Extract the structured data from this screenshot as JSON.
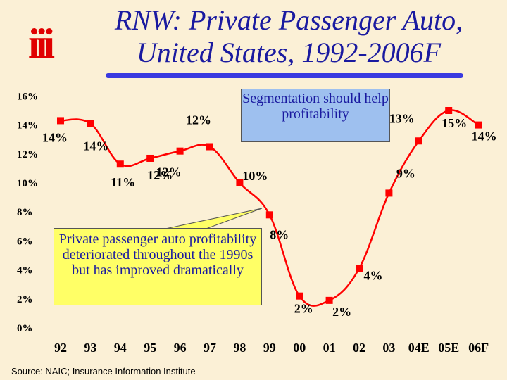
{
  "header": {
    "logo_text": "iii",
    "title_line1": "RNW: Private Passenger Auto,",
    "title_line2": "United States, 1992-2006F"
  },
  "callouts": {
    "segmentation": "Segmentation should help profitability",
    "deterioration": "Private passenger auto profitability deteriorated throughout the 1990s but has improved dramatically"
  },
  "source": "Source:  NAIC; Insurance Information Institute",
  "colors": {
    "line": "#ff0000",
    "marker": "#ff0000",
    "axis_text": "#000000",
    "title": "#1a1aa0",
    "background": "#fbf0d6"
  },
  "chart_data": {
    "type": "line",
    "categories": [
      "92",
      "93",
      "94",
      "95",
      "96",
      "97",
      "98",
      "99",
      "00",
      "01",
      "02",
      "03",
      "04E",
      "05E",
      "06F"
    ],
    "series": [
      {
        "values": [
          14.3,
          14.1,
          11.3,
          11.7,
          12.2,
          12.5,
          10.0,
          7.8,
          2.2,
          1.9,
          4.1,
          9.3,
          12.9,
          15.0,
          14.0
        ]
      }
    ],
    "data_labels": [
      "14%",
      "14%",
      "11%",
      "12%",
      "12%",
      "12%",
      "10%",
      "8%",
      "2%",
      "2%",
      "4%",
      "9%",
      "13%",
      "15%",
      "14%"
    ],
    "y_ticks": [
      "0%",
      "2%",
      "4%",
      "6%",
      "8%",
      "10%",
      "12%",
      "14%",
      "16%"
    ],
    "ylim": [
      0,
      16
    ],
    "grid": false,
    "legend": "none",
    "title": "RNW: Private Passenger Auto, United States, 1992-2006F",
    "xlabel": "",
    "ylabel": ""
  }
}
